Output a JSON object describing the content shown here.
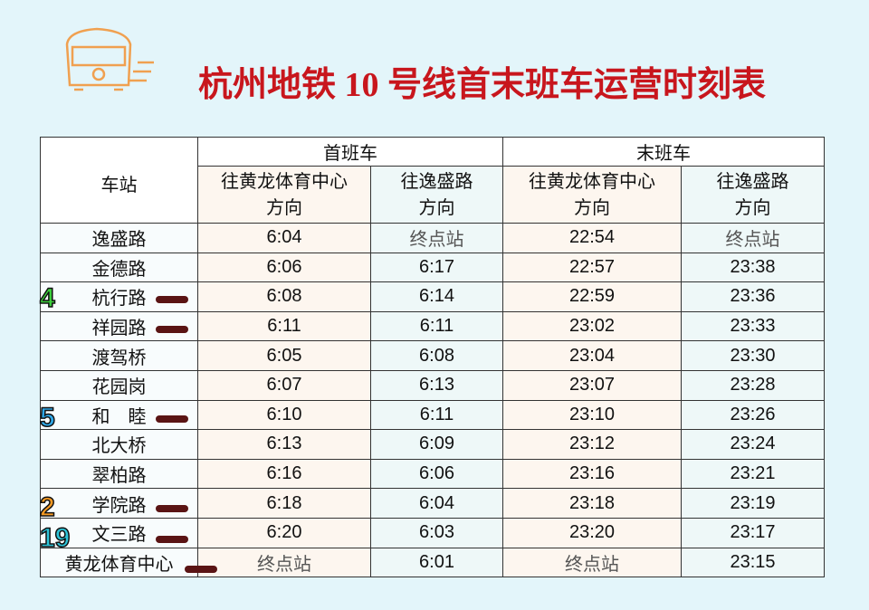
{
  "title": "杭州地铁 10 号线首末班车运营时刻表",
  "table": {
    "header": {
      "station": "车站",
      "first": "首班车",
      "last": "末班车",
      "directions": [
        [
          "往黄龙体育中心",
          "方向"
        ],
        [
          "往逸盛路",
          "方向"
        ],
        [
          "往黄龙体育中心",
          "方向"
        ],
        [
          "往逸盛路",
          "方向"
        ]
      ]
    },
    "rows": [
      {
        "station": "逸盛路",
        "times": [
          "6:04",
          "终点站",
          "22:54",
          "终点站"
        ]
      },
      {
        "station": "金德路",
        "times": [
          "6:06",
          "6:17",
          "22:57",
          "23:38"
        ]
      },
      {
        "station": "杭行路",
        "line": "4",
        "times": [
          "6:08",
          "6:14",
          "22:59",
          "23:36"
        ]
      },
      {
        "station": "祥园路",
        "times": [
          "6:11",
          "6:11",
          "23:02",
          "23:33"
        ]
      },
      {
        "station": "渡驾桥",
        "times": [
          "6:05",
          "6:08",
          "23:04",
          "23:30"
        ]
      },
      {
        "station": "花园岗",
        "times": [
          "6:07",
          "6:13",
          "23:07",
          "23:28"
        ]
      },
      {
        "station": "和　睦",
        "line": "5",
        "times": [
          "6:10",
          "6:11",
          "23:10",
          "23:26"
        ]
      },
      {
        "station": "北大桥",
        "times": [
          "6:13",
          "6:09",
          "23:12",
          "23:24"
        ]
      },
      {
        "station": "翠柏路",
        "times": [
          "6:16",
          "6:06",
          "23:16",
          "23:21"
        ]
      },
      {
        "station": "学院路",
        "line": "2",
        "times": [
          "6:18",
          "6:04",
          "23:18",
          "23:19"
        ]
      },
      {
        "station": "文三路",
        "line": "19",
        "times": [
          "6:20",
          "6:03",
          "23:20",
          "23:17"
        ]
      },
      {
        "station": "黄龙体育中心",
        "times": [
          "终点站",
          "6:01",
          "终点站",
          "23:15"
        ]
      }
    ]
  }
}
